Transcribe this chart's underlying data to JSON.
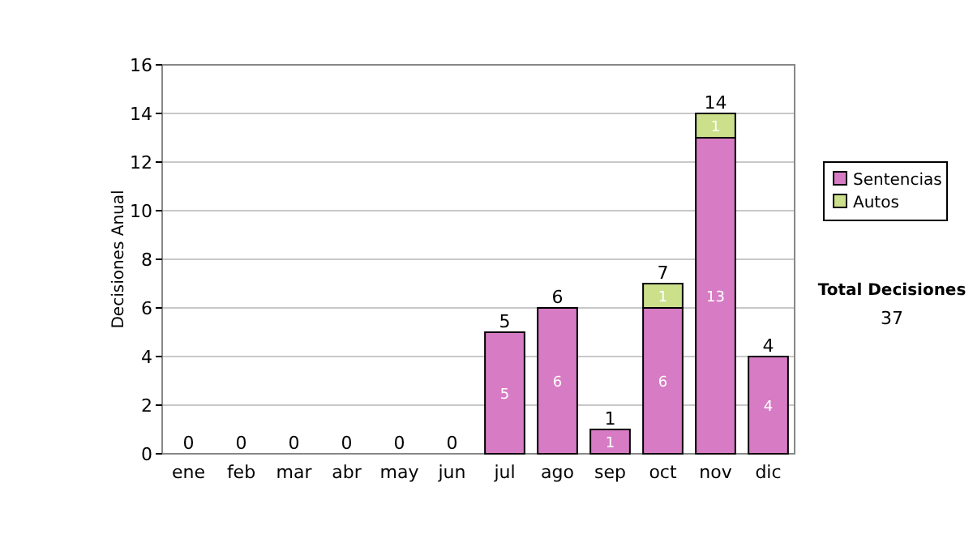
{
  "chart_data": {
    "type": "bar",
    "stacked": true,
    "ylabel": "Decisiones Anual",
    "categories": [
      "ene",
      "feb",
      "mar",
      "abr",
      "may",
      "jun",
      "jul",
      "ago",
      "sep",
      "oct",
      "nov",
      "dic"
    ],
    "series": [
      {
        "name": "Sentencias",
        "color": "#d77cc4",
        "values": [
          0,
          0,
          0,
          0,
          0,
          0,
          5,
          6,
          1,
          6,
          13,
          4
        ],
        "value_labels": [
          null,
          null,
          null,
          null,
          null,
          null,
          "5",
          "6",
          "1",
          "6",
          "13",
          "4"
        ]
      },
      {
        "name": "Autos",
        "color": "#cce08c",
        "values": [
          0,
          0,
          0,
          0,
          0,
          0,
          0,
          0,
          0,
          1,
          1,
          0
        ],
        "value_labels": [
          null,
          null,
          null,
          null,
          null,
          null,
          null,
          null,
          null,
          "1",
          "1",
          null
        ]
      }
    ],
    "totals": [
      "0",
      "0",
      "0",
      "0",
      "0",
      "0",
      "5",
      "6",
      "1",
      "7",
      "14",
      "4"
    ],
    "ylim": [
      0,
      16
    ],
    "yticks": [
      0,
      2,
      4,
      6,
      8,
      10,
      12,
      14,
      16
    ],
    "grid": "y",
    "legend": "right",
    "annotations": [
      "Total Decisiones",
      "37"
    ]
  }
}
